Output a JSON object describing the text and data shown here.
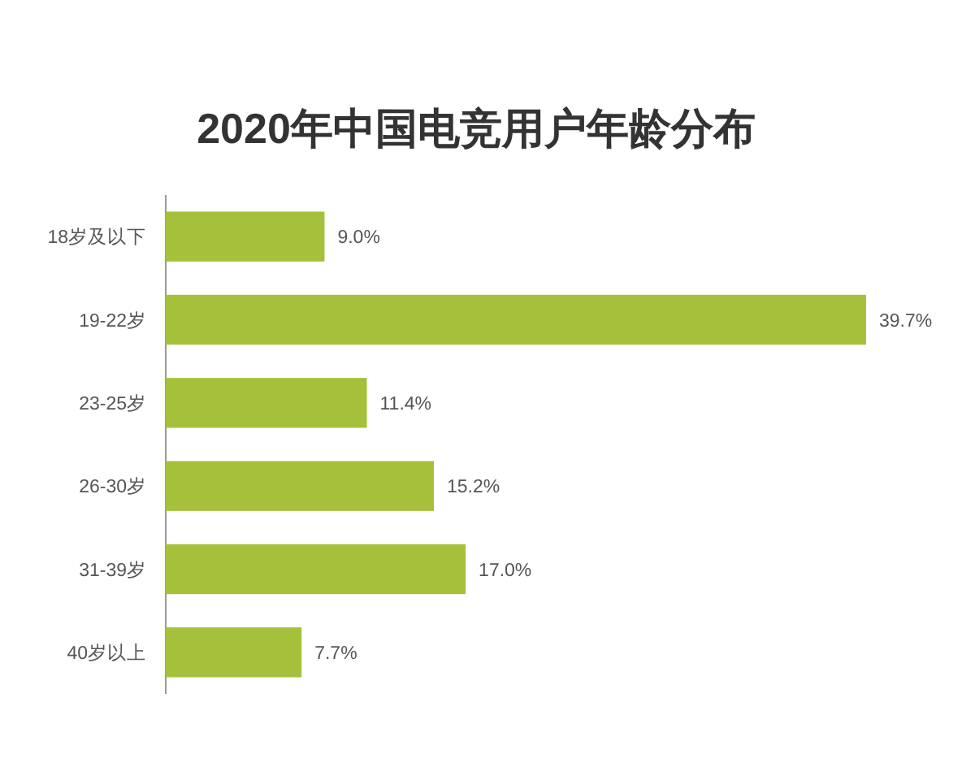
{
  "chart_data": {
    "type": "bar",
    "orientation": "horizontal",
    "title": "2020年中国电竞用户年龄分布",
    "categories": [
      "18岁及以下",
      "19-22岁",
      "23-25岁",
      "26-30岁",
      "31-39岁",
      "40岁以上"
    ],
    "values": [
      9.0,
      39.7,
      11.4,
      15.2,
      17.0,
      7.7
    ],
    "value_labels": [
      "9.0%",
      "39.7%",
      "11.4%",
      "15.2%",
      "17.0%",
      "7.7%"
    ],
    "color": "#a5c13b"
  }
}
